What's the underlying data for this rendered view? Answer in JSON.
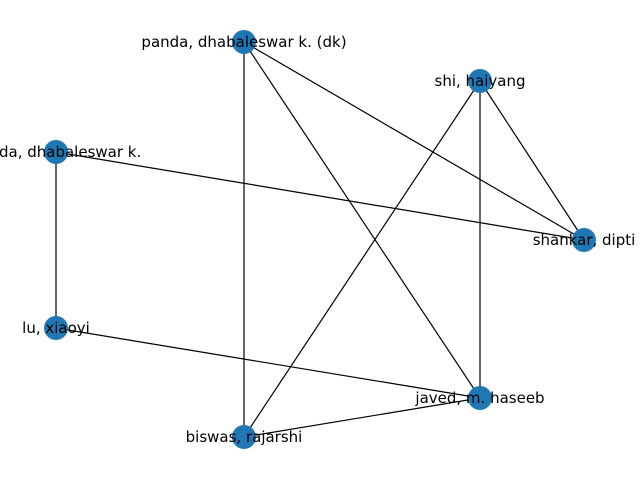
{
  "graph": {
    "node_color": "#1f77b4",
    "edge_color": "#000000",
    "nodes": [
      {
        "id": "panda_dk",
        "label": "panda, dhabaleswar k. (dk)"
      },
      {
        "id": "shi",
        "label": "shi, haiyang"
      },
      {
        "id": "panda_k",
        "label": "panda, dhabaleswar k."
      },
      {
        "id": "shankar",
        "label": "shankar, dipti"
      },
      {
        "id": "lu",
        "label": "lu, xiaoyi"
      },
      {
        "id": "javed",
        "label": "javed, m. haseeb"
      },
      {
        "id": "biswas",
        "label": "biswas, rajarshi"
      }
    ],
    "edges": [
      [
        "panda_dk",
        "biswas"
      ],
      [
        "panda_dk",
        "javed"
      ],
      [
        "panda_dk",
        "shankar"
      ],
      [
        "shi",
        "biswas"
      ],
      [
        "shi",
        "javed"
      ],
      [
        "shi",
        "shankar"
      ],
      [
        "panda_k",
        "shankar"
      ],
      [
        "panda_k",
        "lu"
      ],
      [
        "lu",
        "javed"
      ],
      [
        "javed",
        "biswas"
      ]
    ]
  }
}
